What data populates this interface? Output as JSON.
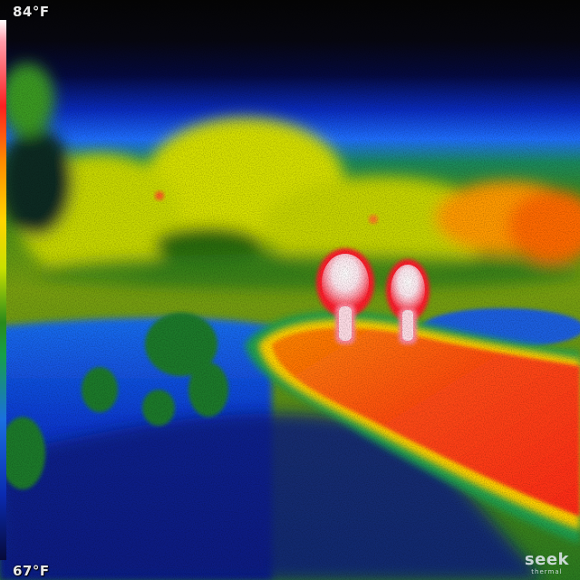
{
  "thermal_view": {
    "max_temp_label": "84°F",
    "min_temp_label": "67°F",
    "palette_colors": [
      "#ffffff",
      "#ff2020",
      "#ff8a00",
      "#ffd500",
      "#c8e000",
      "#2a8a1a",
      "#1a6fe0",
      "#0a2ab0",
      "#060a3a"
    ],
    "subject": "two-people-walking-on-path-thermal"
  },
  "branding": {
    "logo_text": "seek",
    "sub_text": "thermal"
  }
}
